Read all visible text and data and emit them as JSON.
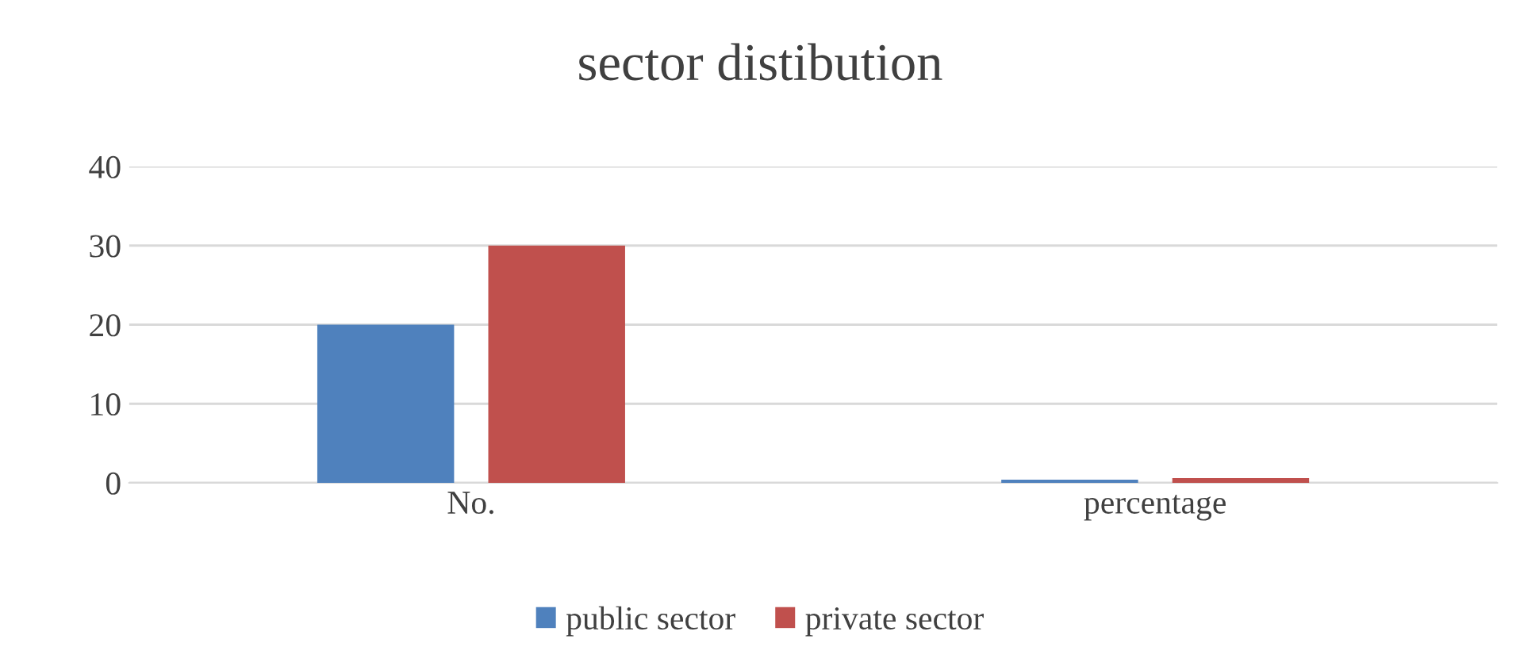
{
  "chart_data": {
    "type": "bar",
    "title": "sector distibution",
    "categories": [
      "No.",
      "percentage"
    ],
    "series": [
      {
        "name": "public sector",
        "color": "#4f81bd",
        "values": [
          20,
          0.4
        ]
      },
      {
        "name": "private sector",
        "color": "#c0504d",
        "values": [
          30,
          0.6
        ]
      }
    ],
    "ylim": [
      0,
      40
    ],
    "yticks": [
      0,
      10,
      20,
      30,
      40
    ],
    "grid": "y",
    "legend": "bottom"
  }
}
